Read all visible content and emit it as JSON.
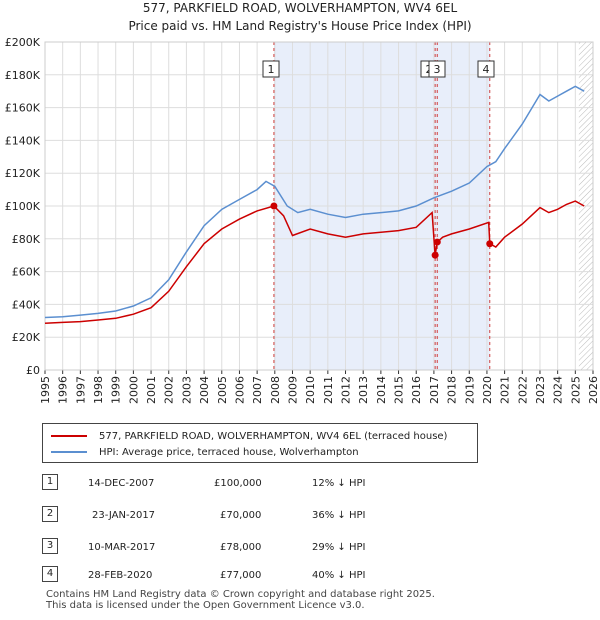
{
  "chart_data": {
    "type": "line",
    "title": "577, PARKFIELD ROAD, WOLVERHAMPTON, WV4 6EL",
    "subtitle": "Price paid vs. HM Land Registry's House Price Index (HPI)",
    "xlim": [
      1995,
      2026
    ],
    "ylim": [
      0,
      200000
    ],
    "x_ticks": [
      "1995",
      "1996",
      "1997",
      "1998",
      "1999",
      "2000",
      "2001",
      "2002",
      "2003",
      "2004",
      "2005",
      "2006",
      "2007",
      "2008",
      "2009",
      "2010",
      "2011",
      "2012",
      "2013",
      "2014",
      "2015",
      "2016",
      "2017",
      "2018",
      "2019",
      "2020",
      "2021",
      "2022",
      "2023",
      "2024",
      "2025",
      "2026"
    ],
    "y_ticks": [
      {
        "value": 0,
        "label": "£0"
      },
      {
        "value": 20000,
        "label": "£20K"
      },
      {
        "value": 40000,
        "label": "£40K"
      },
      {
        "value": 60000,
        "label": "£60K"
      },
      {
        "value": 80000,
        "label": "£80K"
      },
      {
        "value": 100000,
        "label": "£100K"
      },
      {
        "value": 120000,
        "label": "£120K"
      },
      {
        "value": 140000,
        "label": "£140K"
      },
      {
        "value": 160000,
        "label": "£160K"
      },
      {
        "value": 180000,
        "label": "£180K"
      },
      {
        "value": 200000,
        "label": "£200K"
      }
    ],
    "shaded_range": [
      2007.95,
      2020.16
    ],
    "future_hatch_from": 2025.2,
    "series": [
      {
        "name": "hpi",
        "label": "HPI: Average price, terraced house, Wolverhampton",
        "color": "#5b8fd0",
        "points": [
          [
            1995,
            32000
          ],
          [
            1996,
            32500
          ],
          [
            1997,
            33500
          ],
          [
            1998,
            34500
          ],
          [
            1999,
            36000
          ],
          [
            2000,
            39000
          ],
          [
            2001,
            44000
          ],
          [
            2002,
            55000
          ],
          [
            2003,
            72000
          ],
          [
            2004,
            88000
          ],
          [
            2005,
            98000
          ],
          [
            2006,
            104000
          ],
          [
            2007,
            110000
          ],
          [
            2007.5,
            115000
          ],
          [
            2008,
            112000
          ],
          [
            2008.7,
            100000
          ],
          [
            2009.3,
            96000
          ],
          [
            2010,
            98000
          ],
          [
            2011,
            95000
          ],
          [
            2012,
            93000
          ],
          [
            2013,
            95000
          ],
          [
            2014,
            96000
          ],
          [
            2015,
            97000
          ],
          [
            2016,
            100000
          ],
          [
            2017,
            105000
          ],
          [
            2018,
            109000
          ],
          [
            2019,
            114000
          ],
          [
            2020,
            124000
          ],
          [
            2020.5,
            127000
          ],
          [
            2021,
            135000
          ],
          [
            2022,
            150000
          ],
          [
            2023,
            168000
          ],
          [
            2023.5,
            164000
          ],
          [
            2024,
            167000
          ],
          [
            2024.5,
            170000
          ],
          [
            2025,
            173000
          ],
          [
            2025.5,
            170000
          ]
        ]
      },
      {
        "name": "price_paid",
        "label": "577, PARKFIELD ROAD, WOLVERHAMPTON, WV4 6EL (terraced house)",
        "color": "#cc0000",
        "points": [
          [
            1995,
            28500
          ],
          [
            1996,
            29000
          ],
          [
            1997,
            29500
          ],
          [
            1998,
            30500
          ],
          [
            1999,
            31500
          ],
          [
            2000,
            34000
          ],
          [
            2001,
            38000
          ],
          [
            2002,
            48000
          ],
          [
            2003,
            63000
          ],
          [
            2004,
            77000
          ],
          [
            2005,
            86000
          ],
          [
            2006,
            92000
          ],
          [
            2007,
            97000
          ],
          [
            2007.95,
            100000
          ],
          [
            2008.5,
            94000
          ],
          [
            2009,
            82000
          ],
          [
            2010,
            86000
          ],
          [
            2011,
            83000
          ],
          [
            2012,
            81000
          ],
          [
            2013,
            83000
          ],
          [
            2014,
            84000
          ],
          [
            2015,
            85000
          ],
          [
            2016,
            87000
          ],
          [
            2016.9,
            96000
          ],
          [
            2017.07,
            70000
          ],
          [
            2017.19,
            78000
          ],
          [
            2017.5,
            81000
          ],
          [
            2018,
            83000
          ],
          [
            2019,
            86000
          ],
          [
            2020.1,
            90000
          ],
          [
            2020.16,
            77000
          ],
          [
            2020.5,
            75000
          ],
          [
            2021,
            81000
          ],
          [
            2022,
            89000
          ],
          [
            2023,
            99000
          ],
          [
            2023.5,
            96000
          ],
          [
            2024,
            98000
          ],
          [
            2024.5,
            101000
          ],
          [
            2025,
            103000
          ],
          [
            2025.5,
            100000
          ]
        ]
      }
    ],
    "markers": [
      {
        "id": "1",
        "x": 2007.95,
        "y": 100000
      },
      {
        "id": "2",
        "x": 2017.07,
        "y": 70000
      },
      {
        "id": "3",
        "x": 2017.19,
        "y": 78000
      },
      {
        "id": "4",
        "x": 2020.16,
        "y": 77000
      }
    ]
  },
  "legend": {
    "property_label": "577, PARKFIELD ROAD, WOLVERHAMPTON, WV4 6EL (terraced house)",
    "hpi_label": "HPI: Average price, terraced house, Wolverhampton",
    "property_color": "#cc0000",
    "hpi_color": "#5b8fd0"
  },
  "sales": [
    {
      "id": "1",
      "date": "14-DEC-2007",
      "price": "£100,000",
      "hpi": "12% ↓ HPI"
    },
    {
      "id": "2",
      "date": "23-JAN-2017",
      "price": "£70,000",
      "hpi": "36% ↓ HPI"
    },
    {
      "id": "3",
      "date": "10-MAR-2017",
      "price": "£78,000",
      "hpi": "29% ↓ HPI"
    },
    {
      "id": "4",
      "date": "28-FEB-2020",
      "price": "£77,000",
      "hpi": "40% ↓ HPI"
    }
  ],
  "footer": {
    "line1": "Contains HM Land Registry data © Crown copyright and database right 2025.",
    "line2": "This data is licensed under the Open Government Licence v3.0."
  }
}
